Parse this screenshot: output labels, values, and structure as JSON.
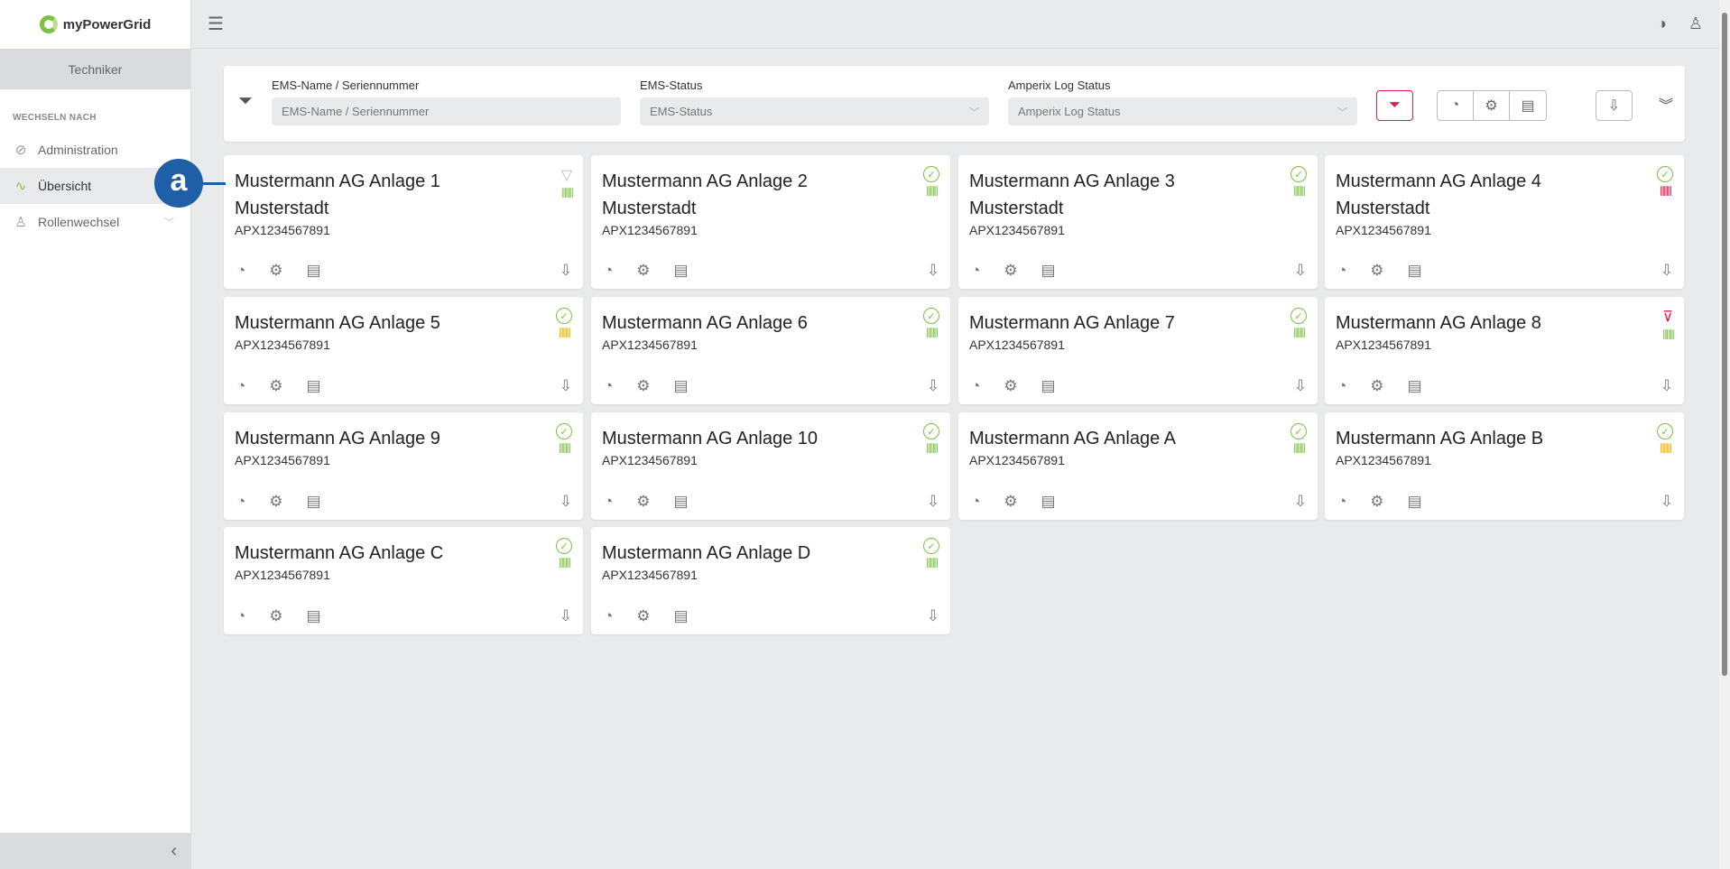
{
  "app": {
    "name": "myPowerGrid"
  },
  "sidebar": {
    "role": "Techniker",
    "section": "WECHSELN NACH",
    "items": [
      {
        "label": "Administration",
        "icon": "compass-icon"
      },
      {
        "label": "Übersicht",
        "icon": "chart-icon",
        "active": true
      },
      {
        "label": "Rollenwechsel",
        "icon": "users-icon",
        "expandable": true
      }
    ]
  },
  "filter": {
    "name": {
      "label": "EMS-Name / Seriennummer",
      "placeholder": "EMS-Name / Seriennummer"
    },
    "status": {
      "label": "EMS-Status",
      "placeholder": "EMS-Status"
    },
    "log": {
      "label": "Amperix Log Status",
      "placeholder": "Amperix Log Status"
    }
  },
  "colors": {
    "green": "#7cc142",
    "red": "#e5194a",
    "yellow": "#f0b400",
    "gray": "#bbbbbb",
    "callout": "#1f5fa8"
  },
  "callout": "a",
  "cards": [
    {
      "title": "Mustermann AG Anlage 1",
      "city": "Musterstadt",
      "serial": "APX1234567891",
      "conn": "unknown",
      "log": "green"
    },
    {
      "title": "Mustermann AG Anlage 2",
      "city": "Musterstadt",
      "serial": "APX1234567891",
      "conn": "ok",
      "log": "green"
    },
    {
      "title": "Mustermann AG Anlage 3",
      "city": "Musterstadt",
      "serial": "APX1234567891",
      "conn": "ok",
      "log": "green"
    },
    {
      "title": "Mustermann AG Anlage 4",
      "city": "Musterstadt",
      "serial": "APX1234567891",
      "conn": "ok",
      "log": "red"
    },
    {
      "title": "Mustermann AG Anlage 5",
      "serial": "APX1234567891",
      "conn": "ok",
      "log": "yellow"
    },
    {
      "title": "Mustermann AG Anlage 6",
      "serial": "APX1234567891",
      "conn": "ok",
      "log": "green"
    },
    {
      "title": "Mustermann AG Anlage 7",
      "serial": "APX1234567891",
      "conn": "ok",
      "log": "green"
    },
    {
      "title": "Mustermann AG Anlage 8",
      "serial": "APX1234567891",
      "conn": "offline",
      "log": "green"
    },
    {
      "title": "Mustermann AG Anlage 9",
      "serial": "APX1234567891",
      "conn": "ok",
      "log": "green"
    },
    {
      "title": "Mustermann AG Anlage 10",
      "serial": "APX1234567891",
      "conn": "ok",
      "log": "green"
    },
    {
      "title": "Mustermann AG Anlage A",
      "serial": "APX1234567891",
      "conn": "ok",
      "log": "green"
    },
    {
      "title": "Mustermann AG Anlage B",
      "serial": "APX1234567891",
      "conn": "ok",
      "log": "yellow"
    },
    {
      "title": "Mustermann AG Anlage C",
      "serial": "APX1234567891",
      "conn": "ok",
      "log": "green"
    },
    {
      "title": "Mustermann AG Anlage D",
      "serial": "APX1234567891",
      "conn": "ok",
      "log": "green"
    }
  ]
}
